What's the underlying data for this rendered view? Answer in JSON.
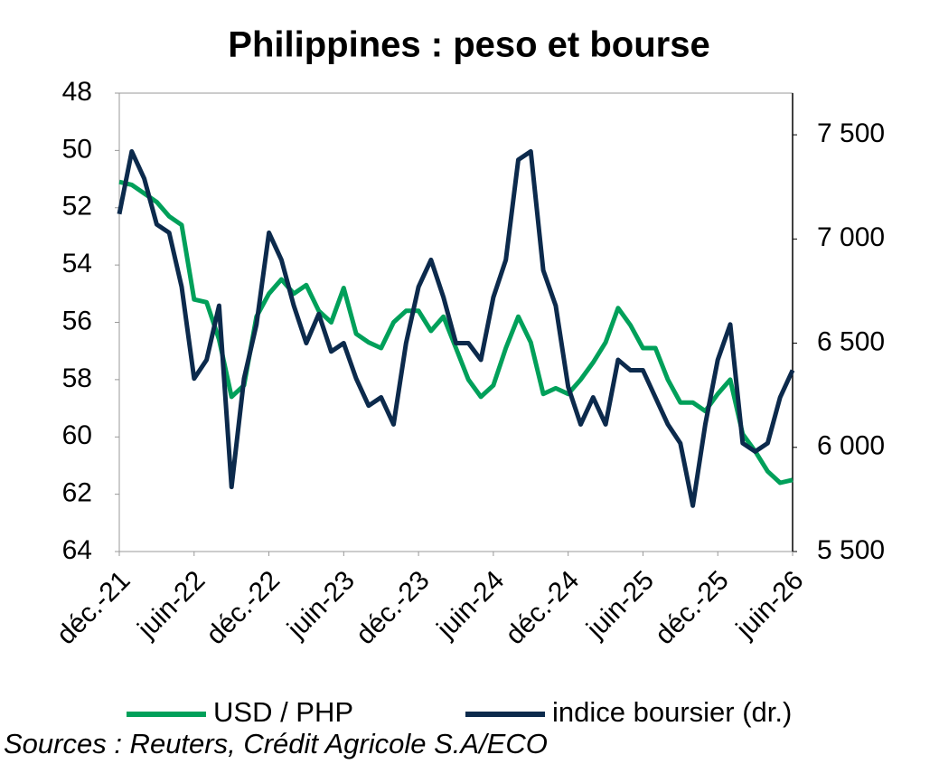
{
  "chart_data": {
    "type": "line",
    "title": "Philippines : peso et bourse",
    "categories": [
      "déc.-21",
      null,
      null,
      null,
      null,
      null,
      "juin-22",
      null,
      null,
      null,
      null,
      null,
      "déc.-22",
      null,
      null,
      null,
      null,
      null,
      "juin-23",
      null,
      null,
      null,
      null,
      null,
      "déc.-23",
      null,
      null,
      null,
      null,
      null,
      "juin-24",
      null,
      null,
      null,
      null,
      null,
      "déc.-24",
      null,
      null,
      null,
      null,
      null,
      "juin-25",
      null,
      null,
      null,
      null,
      null,
      "déc.-25",
      null,
      null,
      null,
      null,
      null,
      "juin-26"
    ],
    "series": [
      {
        "name": "USD / PHP",
        "color": "#00a05a",
        "values": [
          51.1,
          51.2,
          51.5,
          51.8,
          52.3,
          52.6,
          55.2,
          55.3,
          56.6,
          58.6,
          58.2,
          55.8,
          55.0,
          54.5,
          55.0,
          54.7,
          55.6,
          56.0,
          54.8,
          56.4,
          56.7,
          56.9,
          56.0,
          55.6,
          55.6,
          56.3,
          55.8,
          56.9,
          58.0,
          58.6,
          58.2,
          56.9,
          55.8,
          56.7,
          58.5,
          58.3,
          58.5,
          58.0,
          57.4,
          56.7,
          55.5,
          56.1,
          56.9,
          56.9,
          58.0,
          58.8,
          58.8,
          59.1,
          58.5,
          58.0,
          59.9,
          60.5,
          61.2,
          61.6,
          61.5
        ]
      },
      {
        "name": "indice boursier (dr.)",
        "color": "#0c2a4c",
        "axis": "y2",
        "values": [
          7120,
          7420,
          7290,
          7070,
          7030,
          6770,
          6330,
          6420,
          6680,
          5810,
          6330,
          6590,
          7030,
          6900,
          6680,
          6500,
          6640,
          6460,
          6500,
          6330,
          6200,
          6240,
          6110,
          6500,
          6770,
          6900,
          6720,
          6500,
          6500,
          6420,
          6720,
          6900,
          7380,
          7420,
          6850,
          6680,
          6290,
          6110,
          6240,
          6110,
          6420,
          6370,
          6370,
          6240,
          6110,
          6020,
          5720,
          6110,
          6420,
          6590,
          6020,
          5980,
          6020,
          6240,
          6370
        ]
      }
    ],
    "ylim": [
      64,
      48
    ],
    "yticks": [
      48,
      50,
      52,
      54,
      56,
      58,
      60,
      62,
      64
    ],
    "y2lim": [
      5500,
      7700
    ],
    "y2ticks": [
      {
        "value": 5500,
        "label": "5 500"
      },
      {
        "value": 6000,
        "label": "6 000"
      },
      {
        "value": 6500,
        "label": "6 500"
      },
      {
        "value": 7000,
        "label": "7 000"
      },
      {
        "value": 7500,
        "label": "7 500"
      }
    ],
    "source": "Sources : Reuters, Crédit Agricole S.A/ECO"
  }
}
